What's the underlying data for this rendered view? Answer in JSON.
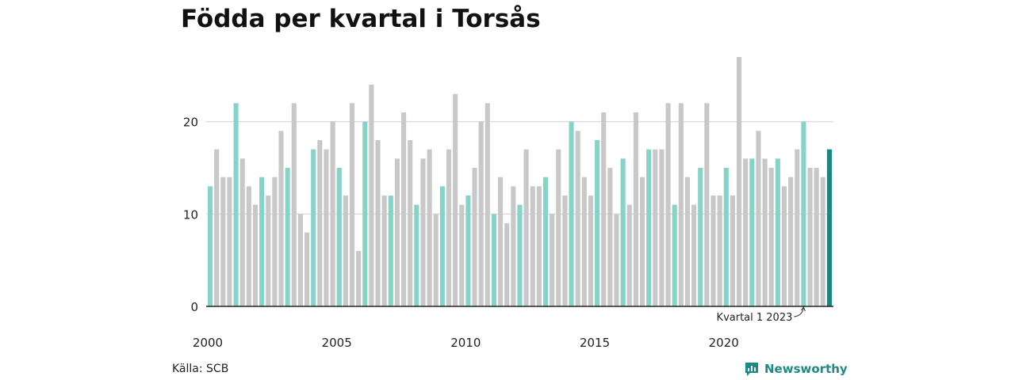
{
  "title": "Födda per kvartal i Torsås",
  "source": "Källa: SCB",
  "brand": {
    "name": "Newsworthy",
    "icon": "newsworthy-logo-icon"
  },
  "colors": {
    "default": "#c8c8c8",
    "highlight": "#86d3ca",
    "latest": "#168a80",
    "gridline": "#dddddd"
  },
  "chart_data": {
    "type": "bar",
    "title": "Födda per kvartal i Torsås",
    "xlabel": "",
    "ylabel": "",
    "ylim": [
      0,
      27
    ],
    "yticks": [
      0,
      10,
      20
    ],
    "xtick_labels": [
      "2000",
      "2005",
      "2010",
      "2015",
      "2020"
    ],
    "grid": true,
    "legend": "none",
    "highlight_rule": "Kvartal 1 is highlighted, latest quarter emphasized",
    "annotation": "Kvartal 1 2023",
    "start": {
      "year": 2000,
      "quarter": 1
    },
    "values": [
      13,
      17,
      14,
      14,
      22,
      16,
      13,
      11,
      14,
      12,
      14,
      19,
      15,
      22,
      10,
      8,
      17,
      18,
      17,
      20,
      15,
      12,
      22,
      6,
      20,
      24,
      18,
      12,
      12,
      16,
      21,
      18,
      11,
      16,
      17,
      10,
      13,
      17,
      23,
      11,
      12,
      15,
      20,
      22,
      10,
      14,
      9,
      13,
      11,
      17,
      13,
      13,
      14,
      10,
      17,
      12,
      20,
      19,
      14,
      12,
      18,
      21,
      15,
      10,
      16,
      11,
      21,
      14,
      17,
      17,
      17,
      22,
      11,
      22,
      14,
      11,
      15,
      22,
      12,
      12,
      15,
      12,
      27,
      16,
      16,
      19,
      16,
      15,
      16,
      13,
      14,
      17,
      20,
      15,
      15,
      14,
      17
    ]
  }
}
